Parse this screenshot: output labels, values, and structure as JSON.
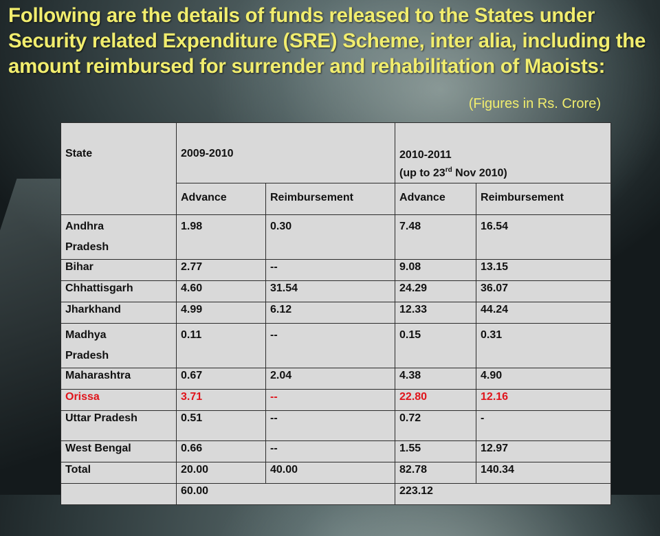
{
  "title": "Following are the details of funds released to the States under Security related Expenditure (SRE) Scheme, inter alia, including the amount reimbursed for surrender and rehabilitation of Maoists:",
  "subtitle": "(Figures in Rs. Crore)",
  "table": {
    "col_state": "State",
    "period1": "2009-2010",
    "period2_main": "2010-2011",
    "period2_note_pre": "(up to 23",
    "period2_note_sup": "rd",
    "period2_note_post": " Nov 2010)",
    "sub_advance": "Advance",
    "sub_reimbursement": "Reimbursement",
    "rows": [
      {
        "state_line1": "Andhra",
        "state_line2": "Pradesh",
        "a1": "1.98",
        "r1": "0.30",
        "a2": "7.48",
        "r2": "16.54"
      },
      {
        "state": "Bihar",
        "a1": "2.77",
        "r1": "--",
        "a2": "9.08",
        "r2": "13.15"
      },
      {
        "state": "Chhattisgarh",
        "a1": "4.60",
        "r1": "31.54",
        "a2": "24.29",
        "r2": "36.07"
      },
      {
        "state": "Jharkhand",
        "a1": "4.99",
        "r1": "6.12",
        "a2": "12.33",
        "r2": "44.24"
      },
      {
        "state_line1": "Madhya",
        "state_line2": "Pradesh",
        "a1": "0.11",
        "r1": "--",
        "a2": "0.15",
        "r2": "0.31"
      },
      {
        "state": "Maharashtra",
        "a1": "0.67",
        "r1": "2.04",
        "a2": "4.38",
        "r2": "4.90"
      },
      {
        "state": "Orissa",
        "a1": "3.71",
        "r1": "--",
        "a2": "22.80",
        "r2": "12.16"
      },
      {
        "state": "Uttar Pradesh",
        "a1": "0.51",
        "r1": "--",
        "a2": "0.72",
        "r2": "-"
      },
      {
        "state": "West Bengal",
        "a1": "0.66",
        "r1": "--",
        "a2": "1.55",
        "r2": "12.97"
      },
      {
        "state": "Total",
        "a1": "20.00",
        "r1": "40.00",
        "a2": "82.78",
        "r2": "140.34"
      }
    ],
    "grand_total_1": "60.00",
    "grand_total_2": "223.12",
    "highlight_color": "#e0141b"
  },
  "colors": {
    "title": "#f1ed6e",
    "table_bg": "#d9d9d9"
  }
}
